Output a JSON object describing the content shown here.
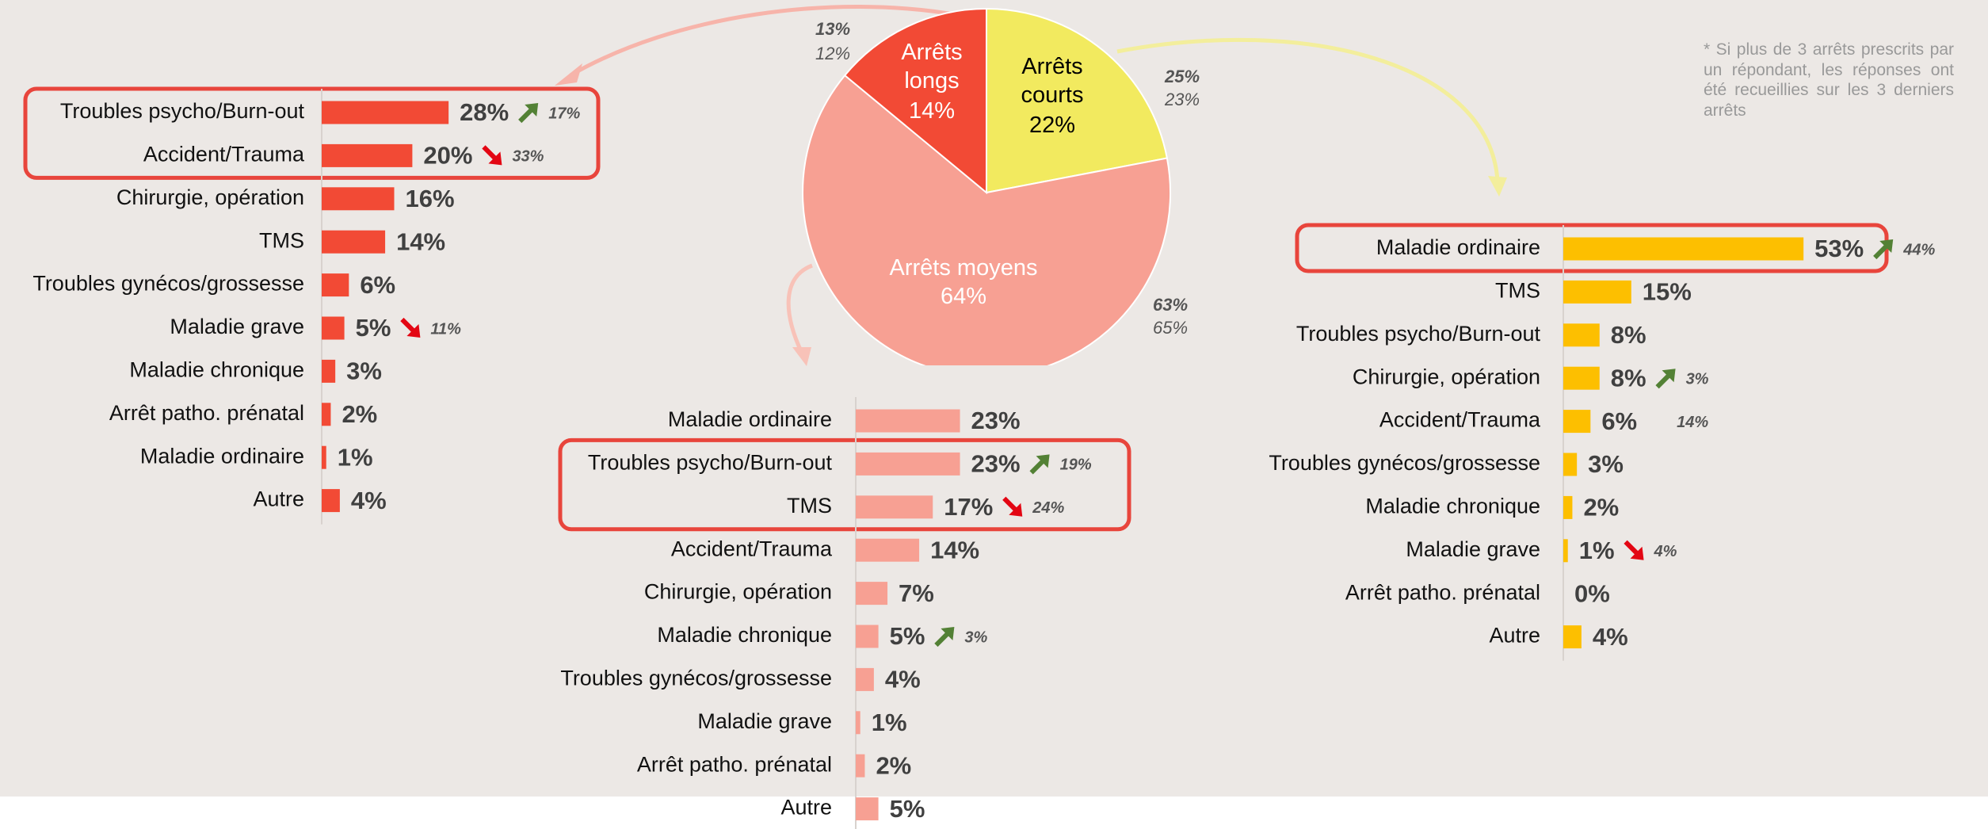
{
  "note": "* Si plus de 3 arrêts prescrits par un répondant, les réponses ont été recueillies sur les 3 derniers arrêts",
  "chart_data": [
    {
      "type": "pie",
      "categories": [
        "Arrêts courts",
        "Arrêts moyens",
        "Arrêts longs"
      ],
      "values": [
        22,
        64,
        14
      ],
      "value_labels": [
        "22%",
        "64%",
        "14%"
      ],
      "colors": [
        "#f2ea5f",
        "#f7a093",
        "#f24a35"
      ],
      "comparisons": [
        {
          "values": [
            25,
            63,
            13
          ],
          "value_labels": [
            "25%",
            "63%",
            "13%"
          ]
        },
        {
          "values": [
            23,
            65,
            12
          ],
          "value_labels": [
            "23%",
            "65%",
            "12%"
          ]
        }
      ]
    },
    {
      "type": "bar",
      "orientation": "horizontal",
      "color": "#f24a35",
      "highlight": [
        0,
        1
      ],
      "categories": [
        "Troubles psycho/Burn-out",
        "Accident/Trauma",
        "Chirurgie, opération",
        "TMS",
        "Troubles gynécos/grossesse",
        "Maladie grave",
        "Maladie chronique",
        "Arrêt patho. prénatal",
        "Maladie ordinaire",
        "Autre"
      ],
      "values": [
        28,
        20,
        16,
        14,
        6,
        5,
        3,
        2,
        1,
        4
      ],
      "value_labels": [
        "28%",
        "20%",
        "16%",
        "14%",
        "6%",
        "5%",
        "3%",
        "2%",
        "1%",
        "4%"
      ],
      "trends": [
        {
          "direction": "up",
          "value": 17,
          "label": "17%"
        },
        {
          "direction": "down",
          "value": 33,
          "label": "33%"
        },
        null,
        null,
        null,
        {
          "direction": "down",
          "value": 11,
          "label": "11%"
        },
        null,
        null,
        null,
        null
      ]
    },
    {
      "type": "bar",
      "orientation": "horizontal",
      "color": "#f7a093",
      "highlight": [
        1,
        2
      ],
      "categories": [
        "Maladie ordinaire",
        "Troubles psycho/Burn-out",
        "TMS",
        "Accident/Trauma",
        "Chirurgie, opération",
        "Maladie chronique",
        "Troubles gynécos/grossesse",
        "Maladie grave",
        "Arrêt patho. prénatal",
        "Autre"
      ],
      "values": [
        23,
        23,
        17,
        14,
        7,
        5,
        4,
        1,
        2,
        5
      ],
      "value_labels": [
        "23%",
        "23%",
        "17%",
        "14%",
        "7%",
        "5%",
        "4%",
        "1%",
        "2%",
        "5%"
      ],
      "trends": [
        null,
        {
          "direction": "up",
          "value": 19,
          "label": "19%"
        },
        {
          "direction": "down",
          "value": 24,
          "label": "24%"
        },
        null,
        null,
        {
          "direction": "up",
          "value": 3,
          "label": "3%"
        },
        null,
        null,
        null,
        null
      ]
    },
    {
      "type": "bar",
      "orientation": "horizontal",
      "color": "#fdbf00",
      "highlight": [
        0
      ],
      "categories": [
        "Maladie ordinaire",
        "TMS",
        "Troubles psycho/Burn-out",
        "Chirurgie, opération",
        "Accident/Trauma",
        "Troubles gynécos/grossesse",
        "Maladie chronique",
        "Maladie grave",
        "Arrêt patho. prénatal",
        "Autre"
      ],
      "values": [
        53,
        15,
        8,
        8,
        6,
        3,
        2,
        1,
        0,
        4
      ],
      "value_labels": [
        "53%",
        "15%",
        "8%",
        "8%",
        "6%",
        "3%",
        "2%",
        "1%",
        "0%",
        "4%"
      ],
      "trends": [
        {
          "direction": "up",
          "value": 44,
          "label": "44%"
        },
        null,
        null,
        {
          "direction": "up",
          "value": 3,
          "label": "3%"
        },
        {
          "direction": null,
          "value": 14,
          "label": "14%"
        },
        null,
        null,
        {
          "direction": "down",
          "value": 4,
          "label": "4%"
        },
        null,
        null
      ]
    }
  ]
}
